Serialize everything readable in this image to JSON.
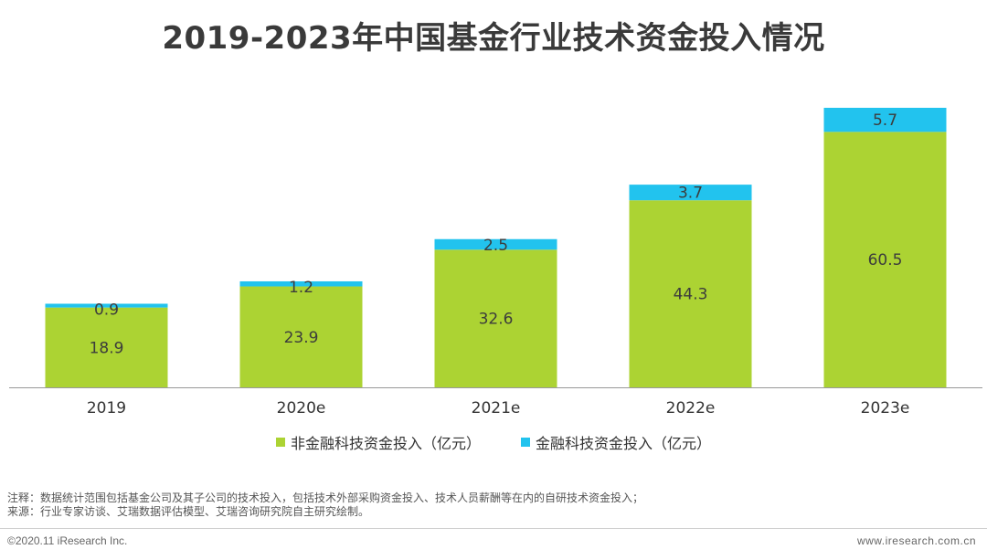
{
  "chart_data": {
    "type": "bar",
    "stacked": true,
    "title": "2019-2023年中国基金行业技术资金投入情况",
    "categories": [
      "2019",
      "2020e",
      "2021e",
      "2022e",
      "2023e"
    ],
    "series": [
      {
        "name": "非金融科技资金投入（亿元）",
        "color": "#acd333",
        "values": [
          18.9,
          23.9,
          32.6,
          44.3,
          60.5
        ]
      },
      {
        "name": "金融科技资金投入（亿元）",
        "color": "#22c3ee",
        "values": [
          0.9,
          1.2,
          2.5,
          3.7,
          5.7
        ]
      }
    ],
    "value_labels": {
      "non_fintech": [
        "18.9",
        "23.9",
        "32.6",
        "44.3",
        "60.5"
      ],
      "fintech": [
        "0.9",
        "1.2",
        "2.5",
        "3.7",
        "5.7"
      ]
    },
    "ylim": [
      0,
      66.2
    ],
    "xlabel": "",
    "ylabel": "",
    "grid": false,
    "legend_position": "bottom-center"
  },
  "notes": {
    "line1": "注释：数据统计范围包括基金公司及其子公司的技术投入，包括技术外部采购资金投入、技术人员薪酬等在内的自研技术资金投入；",
    "line2": "来源：行业专家访谈、艾瑞数据评估模型、艾瑞咨询研究院自主研究绘制。"
  },
  "footer": {
    "copyright": "©2020.11 iResearch Inc.",
    "website": "www.iresearch.com.cn"
  },
  "colors": {
    "axis": "#999999",
    "footer_line": "#cfcfcf"
  }
}
